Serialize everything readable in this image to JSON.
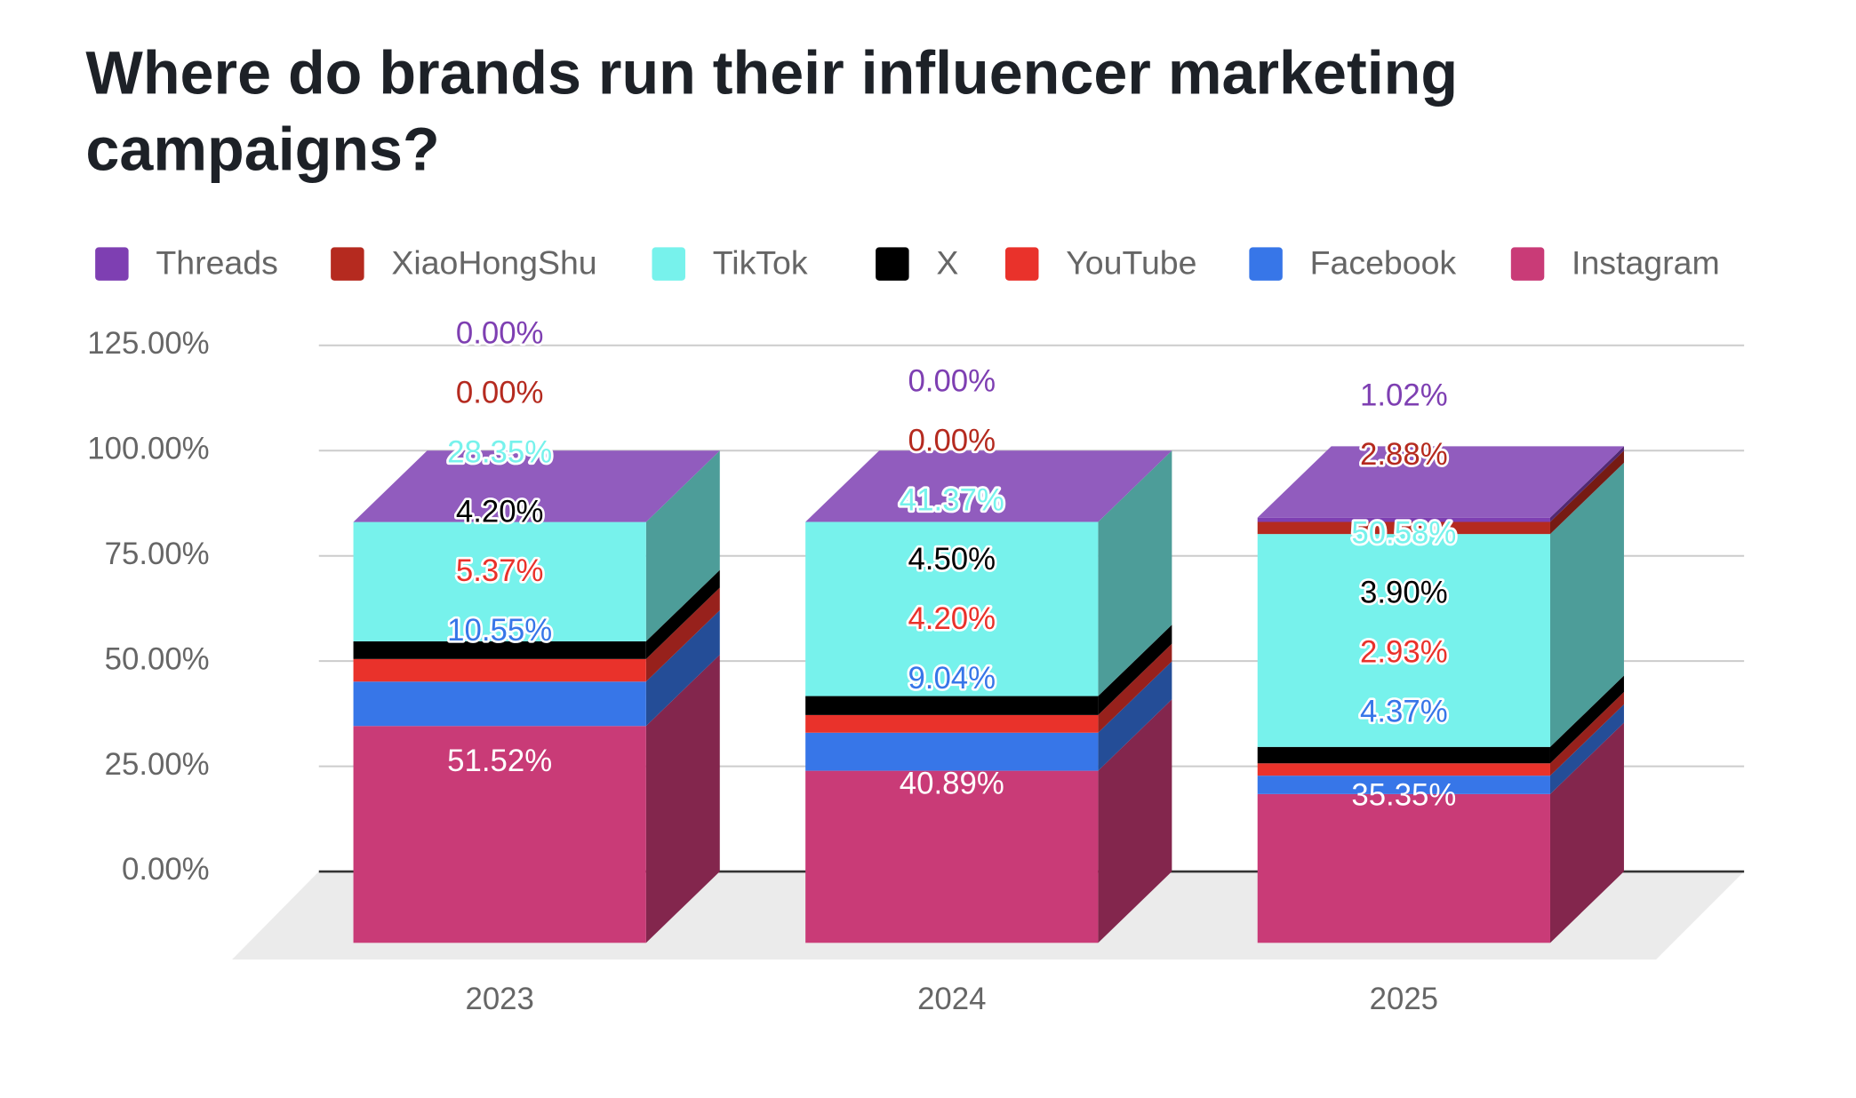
{
  "chart_data": {
    "type": "bar3d_stacked",
    "title": "Where do brands run their influencer marketing campaigns?",
    "categories": [
      "2023",
      "2024",
      "2025"
    ],
    "series": [
      {
        "name": "Instagram",
        "color": "#c93b77",
        "values": [
          51.52,
          40.89,
          35.35
        ],
        "value_labels": [
          "51.52%",
          "40.89%",
          "35.35%"
        ]
      },
      {
        "name": "Facebook",
        "color": "#3776e8",
        "values": [
          10.55,
          9.04,
          4.37
        ],
        "value_labels": [
          "10.55%",
          "9.04%",
          "4.37%"
        ]
      },
      {
        "name": "YouTube",
        "color": "#e9322b",
        "values": [
          5.37,
          4.2,
          2.93
        ],
        "value_labels": [
          "5.37%",
          "4.20%",
          "2.93%"
        ]
      },
      {
        "name": "X",
        "color": "#000000",
        "values": [
          4.2,
          4.5,
          3.9
        ],
        "value_labels": [
          "4.20%",
          "4.50%",
          "3.90%"
        ]
      },
      {
        "name": "TikTok",
        "color": "#77f2ec",
        "values": [
          28.35,
          41.37,
          50.58
        ],
        "value_labels": [
          "28.35%",
          "41.37%",
          "50.58%"
        ]
      },
      {
        "name": "XiaoHongShu",
        "color": "#b52a1f",
        "values": [
          0,
          0,
          2.88
        ],
        "value_labels": [
          "0.00%",
          "0.00%",
          "2.88%"
        ]
      },
      {
        "name": "Threads",
        "color": "#7e3fb2",
        "values": [
          0,
          0,
          1.02
        ],
        "value_labels": [
          "0.00%",
          "0.00%",
          "1.02%"
        ]
      }
    ],
    "ylim": [
      0,
      125
    ],
    "yticks": [
      {
        "value": 0,
        "label": "0.00%"
      },
      {
        "value": 25,
        "label": "25.00%"
      },
      {
        "value": 50,
        "label": "50.00%"
      },
      {
        "value": 75,
        "label": "75.00%"
      },
      {
        "value": 100,
        "label": "100.00%"
      },
      {
        "value": 125,
        "label": "125.00%"
      }
    ],
    "grid": true,
    "legend": "top"
  }
}
